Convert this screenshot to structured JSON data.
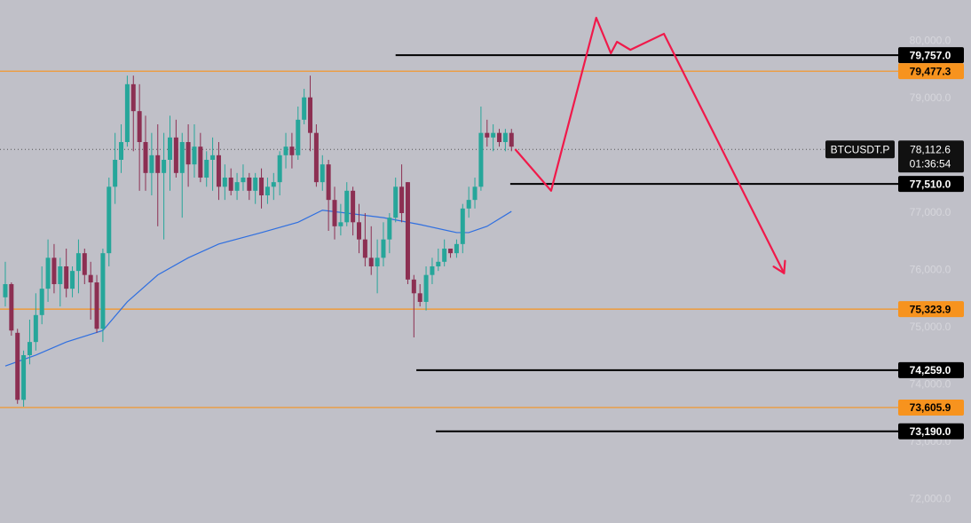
{
  "chart_data": {
    "type": "candlestick",
    "symbol": "BTCUSDT.P",
    "countdown": "01:36:54",
    "last_price": {
      "value": 78112.6,
      "label": "78,112.6"
    },
    "up_color": "#26a69a",
    "down_color": "#8c2f52",
    "xlim": [
      -0.87,
      145.4
    ],
    "ylim": [
      71590,
      80720
    ],
    "yticks": [
      {
        "value": 72000,
        "label": "72,000.0"
      },
      {
        "value": 73000,
        "label": "73,000.0"
      },
      {
        "value": 74000,
        "label": "74,000.0"
      },
      {
        "value": 75000,
        "label": "75,000.0"
      },
      {
        "value": 76000,
        "label": "76,000.0"
      },
      {
        "value": 77000,
        "label": "77,000.0"
      },
      {
        "value": 78000,
        "label": "78,000.0"
      },
      {
        "value": 79000,
        "label": "79,000.0"
      },
      {
        "value": 80000,
        "label": "80,000.0"
      }
    ],
    "candles": [
      [
        75530,
        76150,
        75370,
        75760
      ],
      [
        75760,
        75790,
        74860,
        74950
      ],
      [
        74910,
        74980,
        73670,
        73740
      ],
      [
        73740,
        74600,
        73620,
        74520
      ],
      [
        74520,
        75140,
        74360,
        74750
      ],
      [
        74750,
        75600,
        74600,
        75220
      ],
      [
        75220,
        76070,
        75060,
        75680
      ],
      [
        75680,
        76540,
        75450,
        76220
      ],
      [
        76220,
        76460,
        75600,
        75760
      ],
      [
        75760,
        76220,
        75370,
        76070
      ],
      [
        76070,
        76380,
        75530,
        75680
      ],
      [
        75680,
        76070,
        75530,
        75990
      ],
      [
        75990,
        76540,
        75600,
        76300
      ],
      [
        76300,
        76380,
        75760,
        75920
      ],
      [
        75920,
        76150,
        75140,
        75790
      ],
      [
        75790,
        75920,
        74910,
        74980
      ],
      [
        74980,
        76380,
        74750,
        76300
      ],
      [
        76300,
        77620,
        76070,
        77460
      ],
      [
        77460,
        78400,
        77160,
        77930
      ],
      [
        77930,
        78550,
        77700,
        78240
      ],
      [
        78240,
        79400,
        78160,
        79250
      ],
      [
        79250,
        79400,
        78080,
        78780
      ],
      [
        78780,
        79250,
        77390,
        78240
      ],
      [
        78240,
        78700,
        77390,
        77700
      ],
      [
        77700,
        78400,
        77310,
        78010
      ],
      [
        78010,
        78550,
        76770,
        77700
      ],
      [
        77700,
        78400,
        76540,
        77930
      ],
      [
        77930,
        78700,
        77390,
        78320
      ],
      [
        78320,
        78630,
        77620,
        77700
      ],
      [
        77700,
        78400,
        76920,
        78240
      ],
      [
        78240,
        78550,
        77460,
        77850
      ],
      [
        77850,
        78550,
        77620,
        78160
      ],
      [
        78160,
        78400,
        77540,
        77620
      ],
      [
        77620,
        78080,
        77460,
        77930
      ],
      [
        77930,
        78320,
        77390,
        78010
      ],
      [
        78010,
        78240,
        77230,
        77460
      ],
      [
        77460,
        77850,
        77230,
        77620
      ],
      [
        77620,
        77780,
        77310,
        77390
      ],
      [
        77390,
        77700,
        77230,
        77540
      ],
      [
        77540,
        77850,
        77390,
        77620
      ],
      [
        77620,
        77700,
        77230,
        77390
      ],
      [
        77390,
        77700,
        77160,
        77620
      ],
      [
        77620,
        77780,
        77080,
        77310
      ],
      [
        77310,
        77620,
        77160,
        77460
      ],
      [
        77460,
        77700,
        77230,
        77540
      ],
      [
        77540,
        78080,
        77310,
        78010
      ],
      [
        78010,
        78400,
        77780,
        78160
      ],
      [
        78160,
        78400,
        77780,
        78010
      ],
      [
        78010,
        78860,
        77930,
        78630
      ],
      [
        78630,
        79170,
        78550,
        79020
      ],
      [
        79020,
        79400,
        78080,
        78400
      ],
      [
        78400,
        78550,
        77460,
        77540
      ],
      [
        77540,
        78010,
        77390,
        77850
      ],
      [
        77850,
        77930,
        76690,
        77230
      ],
      [
        77230,
        77460,
        76540,
        76770
      ],
      [
        76770,
        77160,
        76610,
        76840
      ],
      [
        76840,
        77540,
        76770,
        77390
      ],
      [
        77390,
        77460,
        76610,
        76840
      ],
      [
        76840,
        77160,
        76300,
        76540
      ],
      [
        76540,
        77000,
        76070,
        76220
      ],
      [
        76220,
        76770,
        75920,
        76070
      ],
      [
        76070,
        76540,
        75600,
        76220
      ],
      [
        76220,
        76840,
        76070,
        76540
      ],
      [
        76540,
        77000,
        76300,
        76920
      ],
      [
        76920,
        77620,
        76840,
        77460
      ],
      [
        77460,
        77850,
        76840,
        77000
      ],
      [
        77540,
        77540,
        75760,
        75840
      ],
      [
        75840,
        75920,
        74830,
        75600
      ],
      [
        75600,
        75760,
        75370,
        75450
      ],
      [
        75450,
        76070,
        75300,
        75920
      ],
      [
        75920,
        76220,
        75760,
        76070
      ],
      [
        76070,
        76380,
        75990,
        76150
      ],
      [
        76150,
        76540,
        76070,
        76380
      ],
      [
        76380,
        76380,
        76220,
        76300
      ],
      [
        76300,
        76540,
        76220,
        76460
      ],
      [
        76460,
        77160,
        76300,
        77080
      ],
      [
        77080,
        77460,
        76920,
        77230
      ],
      [
        77230,
        77620,
        77080,
        77460
      ],
      [
        77460,
        78860,
        77390,
        78400
      ],
      [
        78400,
        78630,
        78160,
        78320
      ],
      [
        78320,
        78550,
        78080,
        78400
      ],
      [
        78400,
        78470,
        78160,
        78240
      ],
      [
        78240,
        78470,
        78080,
        78400
      ],
      [
        78400,
        78470,
        78080,
        78160
      ]
    ],
    "moving_average": {
      "color": "#2f6fe0",
      "x": [
        0,
        5,
        10,
        16,
        20,
        25,
        30,
        35,
        42,
        48,
        52,
        56,
        62,
        68,
        74,
        76,
        79,
        83
      ],
      "values": [
        74330,
        74520,
        74750,
        74950,
        75450,
        75920,
        76220,
        76460,
        76660,
        76840,
        77050,
        77000,
        76920,
        76800,
        76660,
        76660,
        76770,
        77030
      ]
    },
    "projection": {
      "color": "#f0194a",
      "x": [
        83.6,
        89.5,
        96.9,
        99.3,
        100.3,
        102.5,
        108,
        127.7
      ],
      "values": [
        78116,
        77390,
        80410,
        79790,
        79990,
        79850,
        80130,
        75950
      ]
    },
    "levels": [
      {
        "value": 79757.0,
        "label": "79,757.0",
        "color": "#000000",
        "text_color": "#ffffff",
        "x_start": 64.0
      },
      {
        "value": 79477.3,
        "label": "79,477.3",
        "color": "#f7931e",
        "text_color": "#000000"
      },
      {
        "value": 77510.0,
        "label": "77,510.0",
        "color": "#000000",
        "text_color": "#ffffff",
        "x_start": 82.8
      },
      {
        "value": 75323.9,
        "label": "75,323.9",
        "color": "#f7931e",
        "text_color": "#000000"
      },
      {
        "value": 74259.0,
        "label": "74,259.0",
        "color": "#000000",
        "text_color": "#ffffff",
        "x_start": 67.4
      },
      {
        "value": 73605.9,
        "label": "73,605.9",
        "color": "#f7931e",
        "text_color": "#000000"
      },
      {
        "value": 73190.0,
        "label": "73,190.0",
        "color": "#000000",
        "text_color": "#ffffff",
        "x_start": 70.6
      }
    ]
  }
}
